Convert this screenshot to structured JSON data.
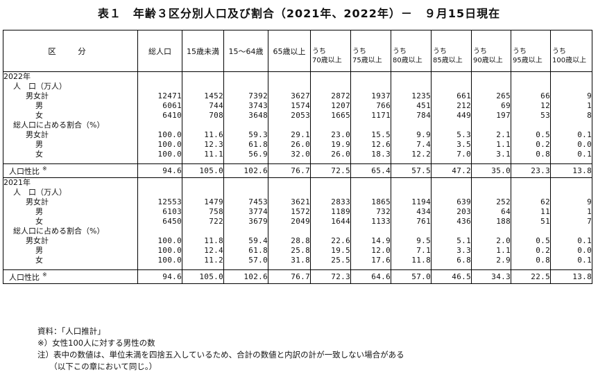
{
  "title": "表１　年齢３区分別人口及び割合（2021年、2022年）－　９月15日現在",
  "headers": {
    "row_label": "区　分",
    "total": "総人口",
    "col_u15": "15歳未満",
    "col_15_64": "15～64歳",
    "col_65": "65歳以上",
    "sub": [
      {
        "top": "うち",
        "bottom": "70歳以上"
      },
      {
        "top": "うち",
        "bottom": "75歳以上"
      },
      {
        "top": "うち",
        "bottom": "80歳以上"
      },
      {
        "top": "うち",
        "bottom": "85歳以上"
      },
      {
        "top": "うち",
        "bottom": "90歳以上"
      },
      {
        "top": "うち",
        "bottom": "95歳以上"
      },
      {
        "top": "うち",
        "bottom": "100歳以上"
      }
    ]
  },
  "sections": [
    {
      "year": "2022年",
      "pop_label": "人　口（万人）",
      "pop_rows": [
        {
          "label": "男女計",
          "values": [
            "12471",
            "1452",
            "7392",
            "3627",
            "2872",
            "1937",
            "1235",
            "661",
            "265",
            "66",
            "9"
          ]
        },
        {
          "label": "男",
          "values": [
            "6061",
            "744",
            "3743",
            "1574",
            "1207",
            "766",
            "451",
            "212",
            "69",
            "12",
            "1"
          ]
        },
        {
          "label": "女",
          "values": [
            "6410",
            "708",
            "3648",
            "2053",
            "1665",
            "1171",
            "784",
            "449",
            "197",
            "53",
            "8"
          ]
        }
      ],
      "share_label": "総人口に占める割合（%）",
      "share_rows": [
        {
          "label": "男女計",
          "values": [
            "100.0",
            "11.6",
            "59.3",
            "29.1",
            "23.0",
            "15.5",
            "9.9",
            "5.3",
            "2.1",
            "0.5",
            "0.1"
          ]
        },
        {
          "label": "男",
          "values": [
            "100.0",
            "12.3",
            "61.8",
            "26.0",
            "19.9",
            "12.6",
            "7.4",
            "3.5",
            "1.1",
            "0.2",
            "0.0"
          ]
        },
        {
          "label": "女",
          "values": [
            "100.0",
            "11.1",
            "56.9",
            "32.0",
            "26.0",
            "18.3",
            "12.2",
            "7.0",
            "3.1",
            "0.8",
            "0.1"
          ]
        }
      ],
      "ratio": {
        "label": "人口性比",
        "mark": "※",
        "values": [
          "94.6",
          "105.0",
          "102.6",
          "76.7",
          "72.5",
          "65.4",
          "57.5",
          "47.2",
          "35.0",
          "23.3",
          "13.8"
        ]
      }
    },
    {
      "year": "2021年",
      "pop_label": "人　口（万人）",
      "pop_rows": [
        {
          "label": "男女計",
          "values": [
            "12553",
            "1479",
            "7453",
            "3621",
            "2833",
            "1865",
            "1194",
            "639",
            "252",
            "62",
            "9"
          ]
        },
        {
          "label": "男",
          "values": [
            "6103",
            "758",
            "3774",
            "1572",
            "1189",
            "732",
            "434",
            "203",
            "64",
            "11",
            "1"
          ]
        },
        {
          "label": "女",
          "values": [
            "6450",
            "722",
            "3679",
            "2049",
            "1644",
            "1133",
            "761",
            "436",
            "188",
            "51",
            "7"
          ]
        }
      ],
      "share_label": "総人口に占める割合（%）",
      "share_rows": [
        {
          "label": "男女計",
          "values": [
            "100.0",
            "11.8",
            "59.4",
            "28.8",
            "22.6",
            "14.9",
            "9.5",
            "5.1",
            "2.0",
            "0.5",
            "0.1"
          ]
        },
        {
          "label": "男",
          "values": [
            "100.0",
            "12.4",
            "61.8",
            "25.8",
            "19.5",
            "12.0",
            "7.1",
            "3.3",
            "1.1",
            "0.2",
            "0.0"
          ]
        },
        {
          "label": "女",
          "values": [
            "100.0",
            "11.2",
            "57.0",
            "31.8",
            "25.5",
            "17.6",
            "11.8",
            "6.8",
            "2.9",
            "0.8",
            "0.1"
          ]
        }
      ],
      "ratio": {
        "label": "人口性比",
        "mark": "※",
        "values": [
          "94.6",
          "105.0",
          "102.6",
          "76.7",
          "72.3",
          "64.6",
          "57.0",
          "46.5",
          "34.3",
          "22.5",
          "13.8"
        ]
      }
    }
  ],
  "notes": [
    "資料：「人口推計」",
    "※）女性100人に対する男性の数",
    "注）表中の数値は、単位未満を四捨五入しているため、合計の数値と内訳の計が一致しない場合がある",
    "　　（以下この章において同じ。）"
  ]
}
